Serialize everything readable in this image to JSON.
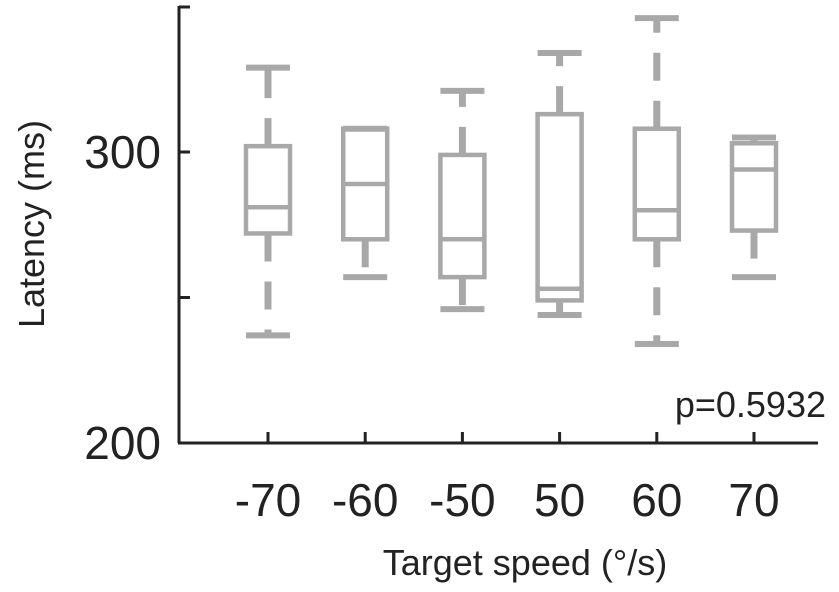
{
  "chart_data": {
    "type": "box",
    "xlabel": "Target speed (°/s)",
    "ylabel": "Latency (ms)",
    "categories": [
      "-70",
      "-60",
      "-50",
      "50",
      "60",
      "70"
    ],
    "ylim": [
      200,
      351
    ],
    "yticks": [
      200,
      250,
      300
    ],
    "ytick_labels": [
      "200",
      "",
      "300"
    ],
    "box_color": "#a8a8a8",
    "annotation": "p=0.5932",
    "boxes": [
      {
        "category": "-70",
        "whisker_low": 237,
        "q1": 272,
        "median": 281,
        "q3": 302,
        "whisker_high": 329
      },
      {
        "category": "-60",
        "whisker_low": 257,
        "q1": 270,
        "median": 289,
        "q3": 308,
        "whisker_high": 308
      },
      {
        "category": "-50",
        "whisker_low": 246,
        "q1": 257,
        "median": 270,
        "q3": 299,
        "whisker_high": 321
      },
      {
        "category": "50",
        "whisker_low": 244,
        "q1": 249,
        "median": 253,
        "q3": 313,
        "whisker_high": 334
      },
      {
        "category": "60",
        "whisker_low": 234,
        "q1": 270,
        "median": 280,
        "q3": 308,
        "whisker_high": 346
      },
      {
        "category": "70",
        "whisker_low": 257,
        "q1": 273,
        "median": 294,
        "q3": 303,
        "whisker_high": 305
      }
    ]
  }
}
